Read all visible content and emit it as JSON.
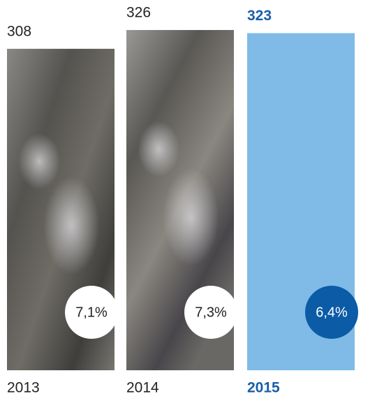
{
  "chart_data": {
    "type": "bar",
    "categories": [
      "2013",
      "2014",
      "2015"
    ],
    "values": [
      308,
      326,
      323
    ],
    "colors": [
      "#6e6d69",
      "#7a7977",
      "#7fbbe6"
    ],
    "highlight": 2,
    "percent_values": [
      7.1,
      7.3,
      6.4
    ],
    "percent_labels": [
      "7,1%",
      "7,3%",
      "6,4%"
    ]
  }
}
